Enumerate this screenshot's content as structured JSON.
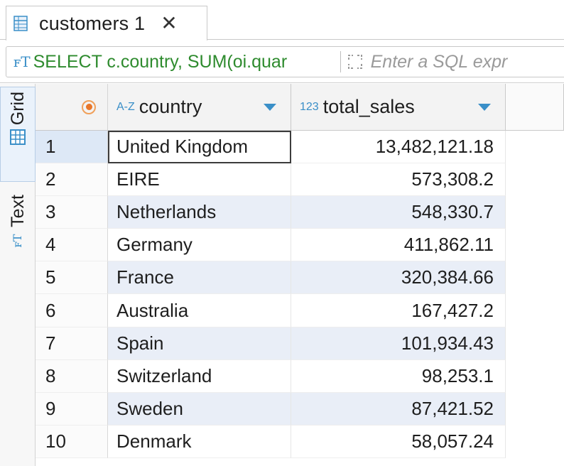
{
  "tab": {
    "title": "customers 1",
    "close": "✕",
    "icon": "table-icon"
  },
  "filter": {
    "sql": "SELECT c.country, SUM(oi.quar",
    "placeholder": "Enter a SQL expr",
    "sql_icon": "sql-icon"
  },
  "side_tabs": [
    {
      "label": "Grid",
      "icon": "grid-icon",
      "active": true
    },
    {
      "label": "Text",
      "icon": "text-icon",
      "active": false
    }
  ],
  "columns": [
    {
      "type": "A-Z",
      "name": "country"
    },
    {
      "type": "123",
      "name": "total_sales"
    }
  ],
  "rows": [
    {
      "n": "1",
      "country": "United Kingdom",
      "total_sales": "13,482,121.18"
    },
    {
      "n": "2",
      "country": "EIRE",
      "total_sales": "573,308.2"
    },
    {
      "n": "3",
      "country": "Netherlands",
      "total_sales": "548,330.7"
    },
    {
      "n": "4",
      "country": "Germany",
      "total_sales": "411,862.11"
    },
    {
      "n": "5",
      "country": "France",
      "total_sales": "320,384.66"
    },
    {
      "n": "6",
      "country": "Australia",
      "total_sales": "167,427.2"
    },
    {
      "n": "7",
      "country": "Spain",
      "total_sales": "101,934.43"
    },
    {
      "n": "8",
      "country": "Switzerland",
      "total_sales": "98,253.1"
    },
    {
      "n": "9",
      "country": "Sweden",
      "total_sales": "87,421.52"
    },
    {
      "n": "10",
      "country": "Denmark",
      "total_sales": "58,057.24"
    }
  ],
  "colors": {
    "accent": "#3a8fc8",
    "sql_text": "#2e8b2e",
    "alt_row": "#e9eef7"
  }
}
